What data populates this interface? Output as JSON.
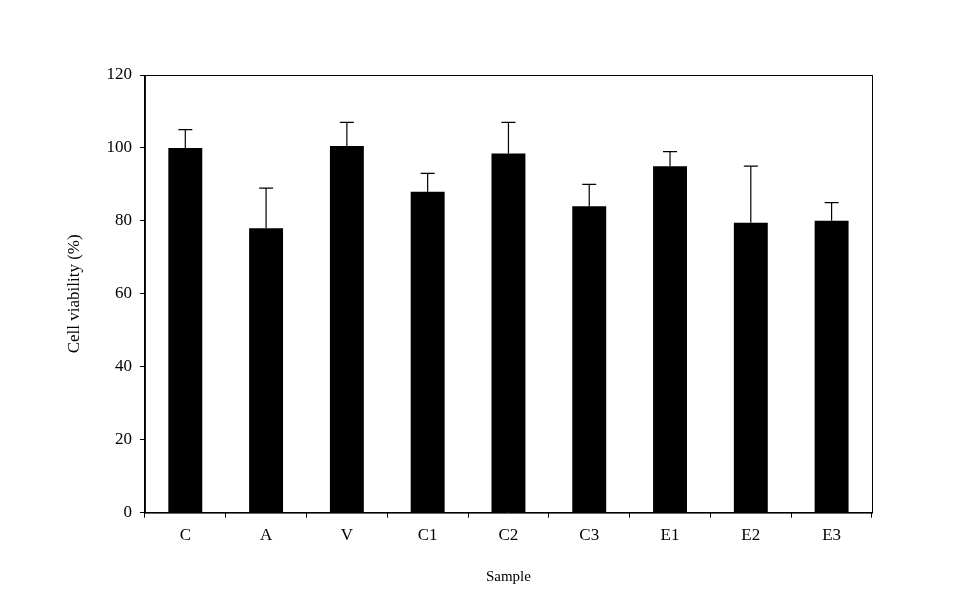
{
  "chart_data": {
    "type": "bar",
    "x_label": "Sample",
    "y_label": "Cell viability (%)",
    "categories": [
      "C",
      "A",
      "V",
      "C1",
      "C2",
      "C3",
      "E1",
      "E2",
      "E3"
    ],
    "values": [
      100,
      78,
      100.5,
      88,
      98.5,
      84,
      95,
      79.5,
      80
    ],
    "errors": [
      5,
      11,
      6.5,
      5,
      8.5,
      6,
      4,
      15.5,
      5
    ],
    "color": "#000000",
    "ylim": [
      0,
      120
    ],
    "yticks": [
      0,
      20,
      40,
      60,
      80,
      100,
      120
    ],
    "grid": false
  }
}
